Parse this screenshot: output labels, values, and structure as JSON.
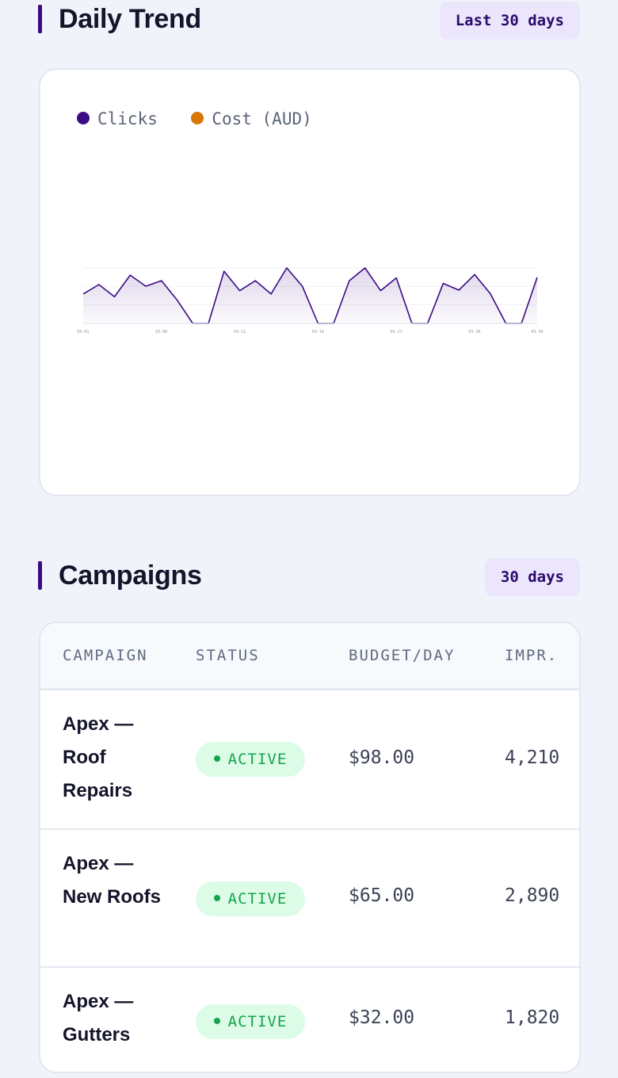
{
  "trend": {
    "title": "Daily Trend",
    "range_label": "Last 30 days"
  },
  "chart_data": {
    "type": "area",
    "legend": [
      {
        "name": "Clicks",
        "color": "#3b0a85"
      },
      {
        "name": "Cost (AUD)",
        "color": "#d97706"
      }
    ],
    "x_tick_labels": [
      "03-01",
      "03-06",
      "03-11",
      "03-16",
      "03-21",
      "03-26",
      "03-30"
    ],
    "series": [
      {
        "name": "Clicks",
        "color": "#3b0a85",
        "values": [
          53,
          70,
          48,
          87,
          67,
          77,
          42,
          0,
          0,
          94,
          59,
          77,
          53,
          100,
          67,
          0,
          0,
          77,
          100,
          59,
          82,
          0,
          0,
          72,
          60,
          88,
          54,
          0,
          0,
          83
        ]
      }
    ],
    "grid": true
  },
  "campaigns": {
    "title": "Campaigns",
    "range_label": "30 days",
    "columns": {
      "campaign": "CAMPAIGN",
      "status": "STATUS",
      "budget": "BUDGET/DAY",
      "impr": "IMPR."
    },
    "rows": [
      {
        "name": "Apex — Roof Repairs",
        "status": "ACTIVE",
        "budget": "$98.00",
        "impr": "4,210"
      },
      {
        "name": "Apex — New Roofs",
        "status": "ACTIVE",
        "budget": "$65.00",
        "impr": "2,890"
      },
      {
        "name": "Apex — Gutters",
        "status": "ACTIVE",
        "budget": "$32.00",
        "impr": "1,820"
      }
    ],
    "status_color": "#16a34a"
  }
}
